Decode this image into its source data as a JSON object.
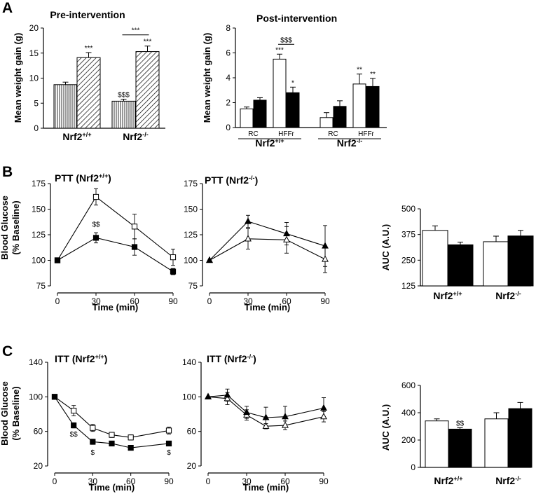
{
  "chart_data": [
    {
      "id": "A1",
      "type": "bar",
      "panel": "A",
      "title": "Pre-intervention",
      "ylabel": "Mean weight gain (g)",
      "ylim": [
        0,
        20
      ],
      "yticks": [
        0,
        5,
        10,
        15,
        20
      ],
      "groups": [
        {
          "label": "Nrf2",
          "sup": "+/+",
          "bars": [
            {
              "value": 8.7,
              "err": 0.5,
              "fill": "vlines",
              "sig": ""
            },
            {
              "value": 14.1,
              "err": 1.0,
              "fill": "hatch",
              "sig": "***"
            }
          ]
        },
        {
          "label": "Nrf2",
          "sup": "-/-",
          "bars": [
            {
              "value": 5.4,
              "err": 0.4,
              "fill": "vlines",
              "sig": "$$$"
            },
            {
              "value": 15.3,
              "err": 1.1,
              "fill": "hatch",
              "sig": "***"
            }
          ]
        }
      ],
      "brackets": [
        {
          "group": 1,
          "label": "***"
        }
      ]
    },
    {
      "id": "A2",
      "type": "bar",
      "panel": "A",
      "title": "Post-intervention",
      "ylabel": "Mean weight gain (g)",
      "ylim": [
        0,
        8
      ],
      "yticks": [
        0,
        2,
        4,
        6,
        8
      ],
      "groups": [
        {
          "label": "Nrf2",
          "sup": "+/+",
          "bars": [
            {
              "value": 1.5,
              "err": 0.15,
              "fill": "white",
              "sig": "",
              "xlabel": "RC"
            },
            {
              "value": 2.2,
              "err": 0.2,
              "fill": "black",
              "sig": ""
            },
            {
              "value": 5.5,
              "err": 0.4,
              "fill": "white",
              "sig": "***",
              "xlabel": "HFFr"
            },
            {
              "value": 2.8,
              "err": 0.45,
              "fill": "black",
              "sig": "*"
            }
          ]
        },
        {
          "label": "Nrf2",
          "sup": "-/-",
          "bars": [
            {
              "value": 0.8,
              "err": 0.4,
              "fill": "white",
              "sig": "",
              "xlabel": "RC"
            },
            {
              "value": 1.7,
              "err": 0.45,
              "fill": "black",
              "sig": ""
            },
            {
              "value": 3.5,
              "err": 0.8,
              "fill": "white",
              "sig": "**",
              "xlabel": "HFFr"
            },
            {
              "value": 3.3,
              "err": 0.65,
              "fill": "black",
              "sig": "**"
            }
          ]
        }
      ],
      "brackets": [
        {
          "group": 0,
          "label": "$$$"
        }
      ]
    },
    {
      "id": "B1",
      "type": "line",
      "panel": "B",
      "title": "PTT (Nrf2",
      "title_sup": "+/+",
      "title_end": ")",
      "xlabel": "Time (min)",
      "ylabel": "Blood Glucose",
      "ylabel2": "(% Baseline)",
      "ylim": [
        75,
        175
      ],
      "yticks": [
        75,
        100,
        125,
        150,
        175
      ],
      "xlim": [
        0,
        90
      ],
      "xticks": [
        0,
        30,
        60,
        90
      ],
      "series": [
        {
          "name": "open",
          "marker": "square-open",
          "x": [
            0,
            30,
            60,
            90
          ],
          "y": [
            100,
            162,
            133,
            103
          ],
          "err": [
            0,
            8,
            12,
            8
          ]
        },
        {
          "name": "filled",
          "marker": "square-filled",
          "x": [
            0,
            30,
            60,
            90
          ],
          "y": [
            100,
            122,
            113,
            89
          ],
          "err": [
            0,
            5,
            8,
            3
          ]
        }
      ],
      "annotations": [
        {
          "x": 30,
          "y": 133,
          "text": "$$"
        }
      ]
    },
    {
      "id": "B2",
      "type": "line",
      "panel": "B",
      "title": "PTT  (Nrf2",
      "title_sup": "-/-",
      "title_end": ")",
      "xlabel": "Time (min)",
      "ylim": [
        75,
        175
      ],
      "yticks": [
        75,
        100,
        125,
        150,
        175
      ],
      "xlim": [
        0,
        90
      ],
      "xticks": [
        0,
        30,
        60,
        90
      ],
      "series": [
        {
          "name": "open",
          "marker": "triangle-open",
          "x": [
            0,
            30,
            60,
            90
          ],
          "y": [
            100,
            121,
            120,
            101
          ],
          "err": [
            0,
            10,
            13,
            13
          ]
        },
        {
          "name": "filled",
          "marker": "triangle-filled",
          "x": [
            0,
            30,
            60,
            90
          ],
          "y": [
            100,
            138,
            126,
            114
          ],
          "err": [
            0,
            6,
            11,
            20
          ]
        }
      ],
      "annotations": []
    },
    {
      "id": "B3",
      "type": "bar",
      "panel": "B",
      "ylabel": "AUC (A.U.)",
      "ylim": [
        125,
        500
      ],
      "yticks": [
        125,
        250,
        375,
        500
      ],
      "groups": [
        {
          "label": "Nrf2",
          "sup": "+/+",
          "bars": [
            {
              "value": 395,
              "err": 22,
              "fill": "white",
              "sig": ""
            },
            {
              "value": 325,
              "err": 13,
              "fill": "black",
              "sig": ""
            }
          ]
        },
        {
          "label": "Nrf2",
          "sup": "-/-",
          "bars": [
            {
              "value": 340,
              "err": 27,
              "fill": "white",
              "sig": ""
            },
            {
              "value": 368,
              "err": 27,
              "fill": "black",
              "sig": ""
            }
          ]
        }
      ],
      "brackets": []
    },
    {
      "id": "C1",
      "type": "line",
      "panel": "C",
      "title": "ITT (Nrf2",
      "title_sup": "+/+",
      "title_end": ")",
      "xlabel": "Time (min)",
      "ylabel": "Blood Glucose",
      "ylabel2": "(% Baseline)",
      "ylim": [
        20,
        140
      ],
      "yticks": [
        20,
        60,
        100,
        140
      ],
      "xlim": [
        0,
        90
      ],
      "xticks": [
        0,
        30,
        60,
        90
      ],
      "series": [
        {
          "name": "open",
          "marker": "square-open",
          "x": [
            0,
            15,
            30,
            45,
            60,
            90
          ],
          "y": [
            100,
            84,
            64,
            56,
            53,
            61
          ],
          "err": [
            0,
            6,
            4,
            3,
            3,
            4
          ]
        },
        {
          "name": "filled",
          "marker": "square-filled",
          "x": [
            0,
            15,
            30,
            45,
            60,
            90
          ],
          "y": [
            100,
            67,
            48,
            46,
            41,
            46
          ],
          "err": [
            0,
            3,
            3,
            2,
            2,
            2
          ]
        }
      ],
      "annotations": [
        {
          "x": 15,
          "y": 54,
          "text": "$$"
        },
        {
          "x": 30,
          "y": 33,
          "text": "$"
        },
        {
          "x": 90,
          "y": 33,
          "text": "$"
        }
      ]
    },
    {
      "id": "C2",
      "type": "line",
      "panel": "C",
      "title": "ITT (Nrf2",
      "title_sup": "-/-",
      "title_end": ")",
      "xlabel": "Time (min)",
      "ylim": [
        20,
        140
      ],
      "yticks": [
        20,
        60,
        100,
        140
      ],
      "xlim": [
        0,
        90
      ],
      "xticks": [
        0,
        30,
        60,
        90
      ],
      "series": [
        {
          "name": "open",
          "marker": "triangle-open",
          "x": [
            0,
            15,
            30,
            45,
            60,
            90
          ],
          "y": [
            100,
            98,
            79,
            66,
            67,
            77
          ],
          "err": [
            0,
            7,
            6,
            3,
            5,
            6
          ]
        },
        {
          "name": "filled",
          "marker": "triangle-filled",
          "x": [
            0,
            15,
            30,
            45,
            60,
            90
          ],
          "y": [
            100,
            102,
            82,
            76,
            77,
            87
          ],
          "err": [
            0,
            7,
            7,
            12,
            12,
            12
          ]
        }
      ],
      "annotations": []
    },
    {
      "id": "C3",
      "type": "bar",
      "panel": "C",
      "ylabel": "AUC (A.U.)",
      "ylim": [
        0,
        600
      ],
      "yticks": [
        0,
        200,
        400,
        600
      ],
      "groups": [
        {
          "label": "Nrf2",
          "sup": "+/+",
          "bars": [
            {
              "value": 340,
              "err": 15,
              "fill": "white",
              "sig": ""
            },
            {
              "value": 280,
              "err": 10,
              "fill": "black",
              "sig": "$$"
            }
          ]
        },
        {
          "label": "Nrf2",
          "sup": "-/-",
          "bars": [
            {
              "value": 355,
              "err": 45,
              "fill": "white",
              "sig": ""
            },
            {
              "value": 430,
              "err": 45,
              "fill": "black",
              "sig": ""
            }
          ]
        }
      ],
      "brackets": []
    }
  ],
  "panels": [
    {
      "letter": "A"
    },
    {
      "letter": "B"
    },
    {
      "letter": "C"
    }
  ]
}
